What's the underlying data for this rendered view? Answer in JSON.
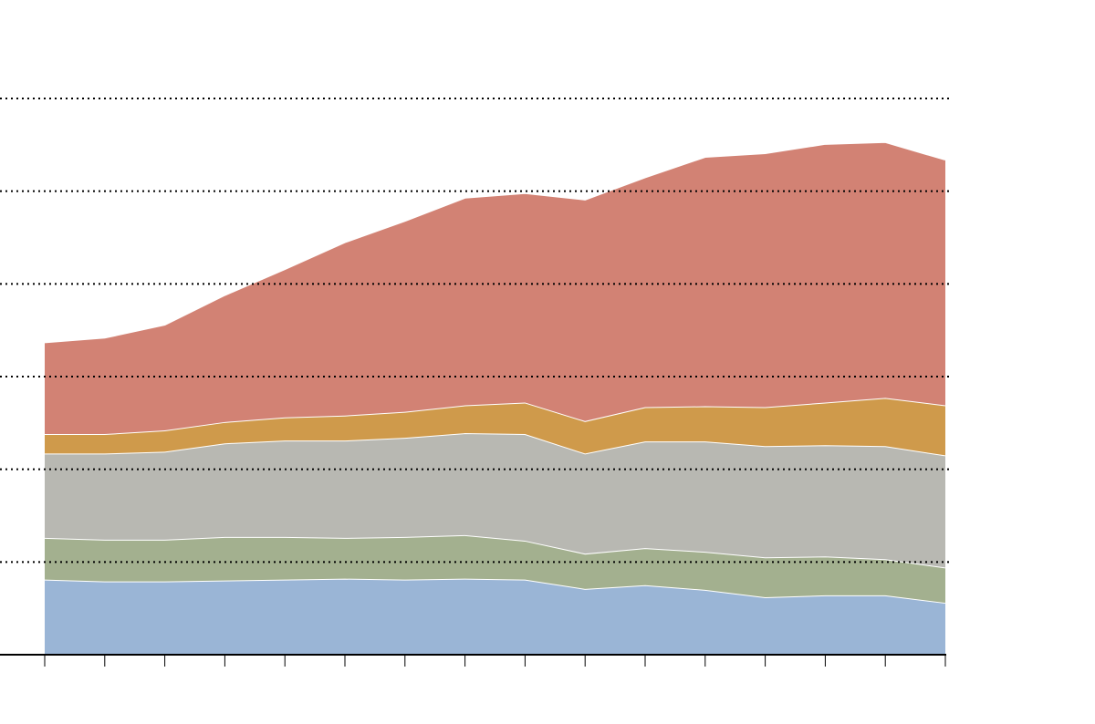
{
  "chart_data": {
    "type": "stacked_area",
    "categories": [
      null,
      null,
      null,
      null,
      null,
      null,
      null,
      null,
      null,
      null,
      null,
      null,
      null,
      null,
      null,
      null
    ],
    "series": [
      {
        "color": "#9ab5d6",
        "values": [
          0.81,
          0.79,
          0.79,
          0.8,
          0.81,
          0.82,
          0.81,
          0.82,
          0.81,
          0.71,
          0.75,
          0.7,
          0.62,
          0.64,
          0.64,
          0.56
        ]
      },
      {
        "color": "#a3b08f",
        "values": [
          0.45,
          0.45,
          0.45,
          0.47,
          0.46,
          0.44,
          0.46,
          0.47,
          0.42,
          0.38,
          0.4,
          0.41,
          0.43,
          0.42,
          0.39,
          0.38
        ]
      },
      {
        "color": "#b8b8b2",
        "values": [
          0.91,
          0.93,
          0.95,
          1.01,
          1.04,
          1.05,
          1.07,
          1.1,
          1.15,
          1.08,
          1.15,
          1.19,
          1.2,
          1.2,
          1.22,
          1.21
        ]
      },
      {
        "color": "#cf9a4b",
        "values": [
          0.21,
          0.21,
          0.23,
          0.23,
          0.25,
          0.27,
          0.28,
          0.3,
          0.34,
          0.35,
          0.37,
          0.38,
          0.42,
          0.46,
          0.52,
          0.54
        ]
      },
      {
        "color": "#d28274",
        "values": [
          0.99,
          1.04,
          1.14,
          1.37,
          1.6,
          1.87,
          2.06,
          2.24,
          2.26,
          2.39,
          2.48,
          2.69,
          2.74,
          2.79,
          2.76,
          2.65
        ]
      }
    ],
    "ylim": [
      0,
      6
    ],
    "yticks": [
      1,
      2,
      3,
      4,
      5,
      6
    ],
    "grid": true
  }
}
